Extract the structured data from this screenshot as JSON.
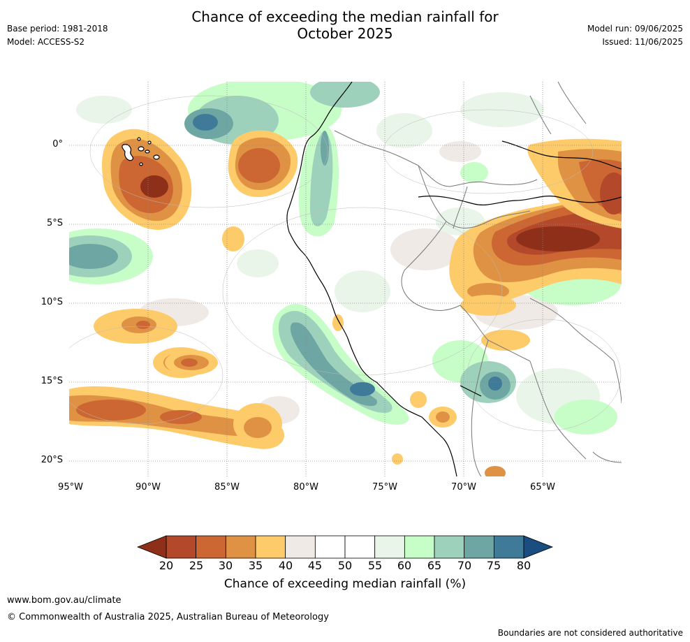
{
  "title_line1": "Chance of exceeding the median rainfall for",
  "title_line2": "October 2025",
  "meta_left": {
    "base_period": "Base period: 1981-2018",
    "model": "Model: ACCESS-S2"
  },
  "meta_right": {
    "model_run": "Model run: 09/06/2025",
    "issued": "Issued: 11/06/2025"
  },
  "lat_labels": [
    "0°",
    "5°S",
    "10°S",
    "15°S",
    "20°S"
  ],
  "lon_labels": [
    "95°W",
    "90°W",
    "85°W",
    "80°W",
    "75°W",
    "70°W",
    "65°W"
  ],
  "colorbar": {
    "label": "Chance of exceeding median rainfall (%)",
    "ticks": [
      "20",
      "25",
      "30",
      "35",
      "40",
      "45",
      "50",
      "55",
      "60",
      "65",
      "70",
      "75",
      "80"
    ],
    "colors": [
      "#8e3019",
      "#b4482a",
      "#cc6733",
      "#e09244",
      "#fecb6a",
      "#efeae6",
      "#ffffff",
      "#ffffff",
      "#e9f5e8",
      "#c7fdc7",
      "#9ed1bc",
      "#6ea6a3",
      "#3f7a98",
      "#1a4d80"
    ]
  },
  "footer": {
    "website": "www.bom.gov.au/climate",
    "copyright": "© Commonwealth of Australia 2025, Australian Bureau of Meteorology",
    "disclaimer": "Boundaries are not considered authoritative"
  }
}
